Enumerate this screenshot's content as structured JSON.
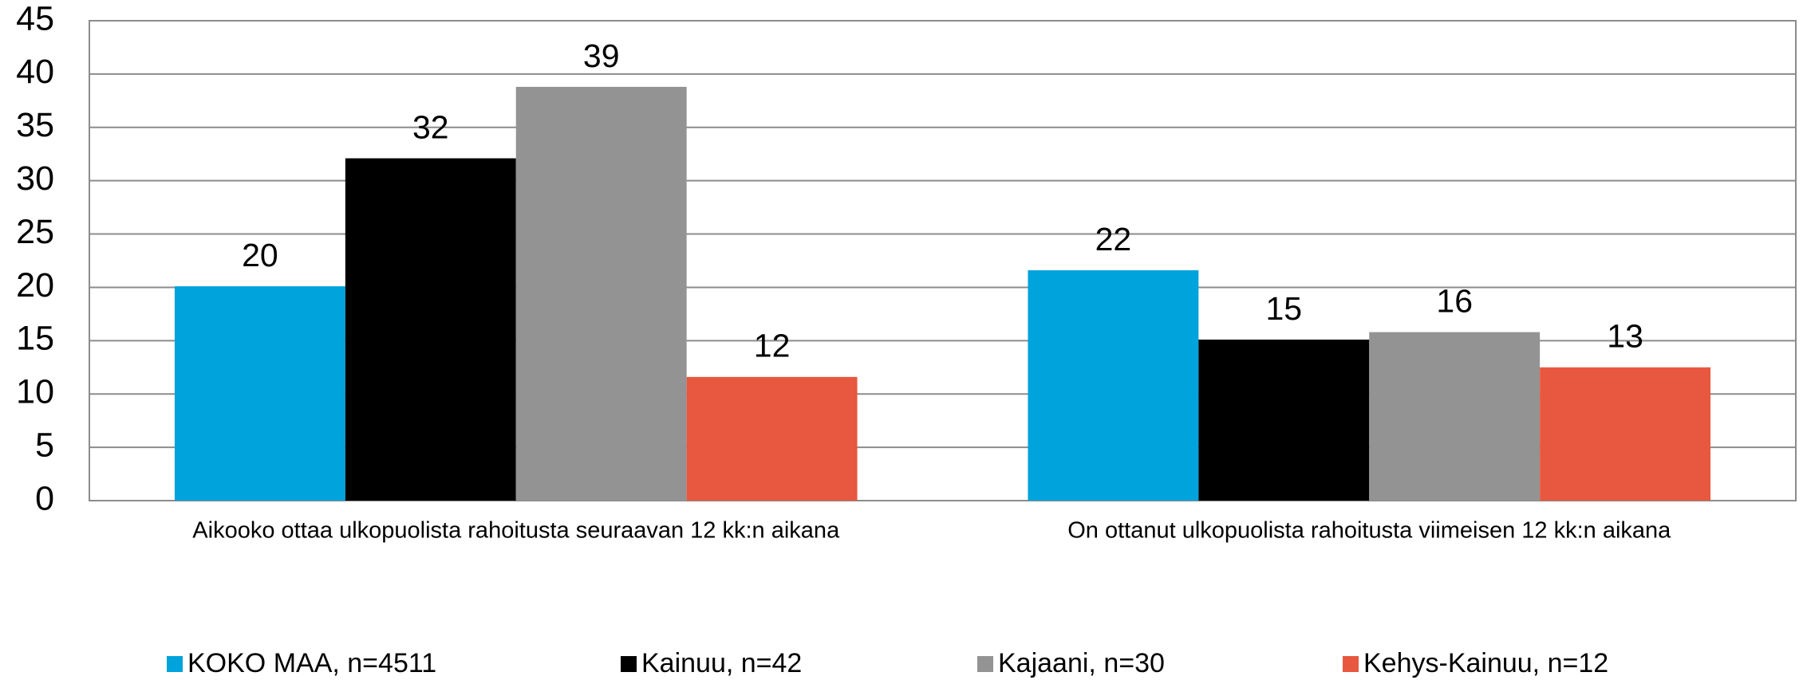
{
  "chart_data": {
    "type": "bar",
    "categories": [
      "Aikooko ottaa ulkopuolista rahoitusta seuraavan 12 kk:n aikana",
      "On ottanut ulkopuolista rahoitusta viimeisen 12 kk:n aikana"
    ],
    "series": [
      {
        "name": "KOKO MAA, n=4511",
        "color": "#00a3dc",
        "values": [
          20.1,
          21.6
        ],
        "value_labels": [
          "20",
          "22"
        ]
      },
      {
        "name": "Kainuu, n=42",
        "color": "#000000",
        "values": [
          32.1,
          15.1
        ],
        "value_labels": [
          "32",
          "15"
        ]
      },
      {
        "name": "Kajaani, n=30",
        "color": "#939393",
        "values": [
          38.8,
          15.8
        ],
        "value_labels": [
          "39",
          "16"
        ]
      },
      {
        "name": "Kehys-Kainuu, n=12",
        "color": "#e8573f",
        "values": [
          11.6,
          12.5
        ],
        "value_labels": [
          "12",
          "13"
        ]
      }
    ],
    "ylim": [
      0,
      45
    ],
    "yticks": [
      0,
      5,
      10,
      15,
      20,
      25,
      30,
      35,
      40,
      45
    ],
    "grid": true,
    "legend": "bottom"
  }
}
